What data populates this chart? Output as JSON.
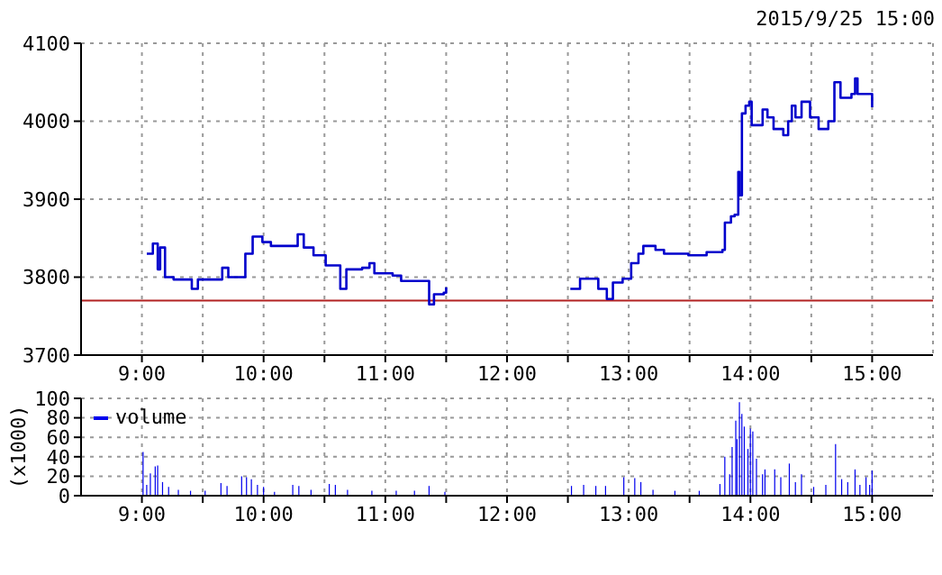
{
  "chart_data": [
    {
      "type": "step",
      "title": "2015/9/25 15:00",
      "xlim": [
        8.5,
        15.5
      ],
      "xticks": [
        {
          "value": 9,
          "label": "9:00"
        },
        {
          "value": 9.5,
          "label": null
        },
        {
          "value": 10,
          "label": "10:00"
        },
        {
          "value": 10.5,
          "label": null
        },
        {
          "value": 11,
          "label": "11:00"
        },
        {
          "value": 11.5,
          "label": null
        },
        {
          "value": 12,
          "label": "12:00"
        },
        {
          "value": 12.5,
          "label": null
        },
        {
          "value": 13,
          "label": "13:00"
        },
        {
          "value": 13.5,
          "label": null
        },
        {
          "value": 14,
          "label": "14:00"
        },
        {
          "value": 14.5,
          "label": null
        },
        {
          "value": 15,
          "label": "15:00"
        }
      ],
      "ylim": [
        3700,
        4100
      ],
      "yticks": [
        3700,
        3800,
        3900,
        4000,
        4100
      ],
      "grid": true,
      "marker": "none",
      "ref_lines": [
        {
          "axis": "y",
          "value": 3770,
          "label": null,
          "color": "#b22222"
        }
      ],
      "series": [
        {
          "color": "#0000cc",
          "x": [
            9.04,
            9.09,
            9.13,
            9.15,
            9.19,
            9.26,
            9.41,
            9.46,
            9.66,
            9.71,
            9.81,
            9.85,
            9.91,
            9.99,
            10.06,
            10.21,
            10.28,
            10.33,
            10.41,
            10.51,
            10.63,
            10.68,
            10.81,
            10.87,
            10.91,
            11.06,
            11.13,
            11.3,
            11.36,
            11.4,
            11.48,
            11.5,
            12.0,
            12.52,
            12.6,
            12.72,
            12.75,
            12.82,
            12.87,
            12.95,
            13.02,
            13.08,
            13.12,
            13.22,
            13.29,
            13.49,
            13.64,
            13.77,
            13.79,
            13.84,
            13.87,
            13.9,
            13.91,
            13.93,
            13.96,
            13.99,
            14.01,
            14.06,
            14.1,
            14.14,
            14.19,
            14.27,
            14.31,
            14.34,
            14.37,
            14.42,
            14.49,
            14.56,
            14.64,
            14.69,
            14.74,
            14.83,
            14.86,
            14.88,
            14.96,
            15.0
          ],
          "values": [
            3830,
            3843,
            3810,
            3838,
            3800,
            3797,
            3785,
            3797,
            3812,
            3800,
            3800,
            3830,
            3852,
            3845,
            3840,
            3840,
            3855,
            3838,
            3828,
            3815,
            3785,
            3810,
            3812,
            3818,
            3805,
            3802,
            3795,
            3795,
            3765,
            3778,
            3780,
            3787,
            null,
            3785,
            3798,
            3798,
            3785,
            3772,
            3793,
            3798,
            3818,
            3830,
            3840,
            3835,
            3830,
            3828,
            3832,
            3835,
            3870,
            3878,
            3880,
            3935,
            3905,
            4010,
            4020,
            4025,
            3995,
            3995,
            4015,
            4005,
            3990,
            3982,
            4000,
            4020,
            4005,
            4025,
            4005,
            3990,
            4000,
            4050,
            4030,
            4035,
            4055,
            4035,
            4035,
            4018
          ]
        }
      ]
    },
    {
      "type": "bar",
      "ylabel": "(x1000)",
      "xlim": [
        8.5,
        15.5
      ],
      "xticks": [
        {
          "value": 9,
          "label": "9:00"
        },
        {
          "value": 9.5,
          "label": null
        },
        {
          "value": 10,
          "label": "10:00"
        },
        {
          "value": 10.5,
          "label": null
        },
        {
          "value": 11,
          "label": "11:00"
        },
        {
          "value": 11.5,
          "label": null
        },
        {
          "value": 12,
          "label": "12:00"
        },
        {
          "value": 12.5,
          "label": null
        },
        {
          "value": 13,
          "label": "13:00"
        },
        {
          "value": 13.5,
          "label": null
        },
        {
          "value": 14,
          "label": "14:00"
        },
        {
          "value": 14.5,
          "label": null
        },
        {
          "value": 15,
          "label": "15:00"
        }
      ],
      "ylim": [
        0,
        100
      ],
      "yticks": [
        0,
        20,
        40,
        60,
        80,
        100
      ],
      "grid": true,
      "legend": "top left",
      "series": [
        {
          "name": "volume",
          "color": "#0000ee",
          "x": [
            9.01,
            9.04,
            9.07,
            9.11,
            9.13,
            9.17,
            9.22,
            9.3,
            9.4,
            9.52,
            9.65,
            9.7,
            9.82,
            9.86,
            9.9,
            9.95,
            10.0,
            10.09,
            10.24,
            10.29,
            10.39,
            10.54,
            10.59,
            10.69,
            10.89,
            11.09,
            11.24,
            11.36,
            11.49,
            12.53,
            12.63,
            12.73,
            12.81,
            12.96,
            13.05,
            13.1,
            13.2,
            13.38,
            13.58,
            13.75,
            13.79,
            13.83,
            13.85,
            13.88,
            13.89,
            13.91,
            13.93,
            13.95,
            13.98,
            14.0,
            14.02,
            14.05,
            14.1,
            14.12,
            14.2,
            14.25,
            14.32,
            14.37,
            14.42,
            14.52,
            14.62,
            14.7,
            14.75,
            14.8,
            14.86,
            14.9,
            14.95,
            14.98,
            15.0
          ],
          "values": [
            45,
            11,
            23,
            30,
            31,
            14,
            9,
            6,
            5,
            5,
            13,
            10,
            20,
            19,
            17,
            11,
            9,
            4,
            11,
            10,
            6,
            12,
            11,
            6,
            5,
            5,
            5,
            10,
            4,
            10,
            11,
            10,
            10,
            19,
            18,
            14,
            6,
            5,
            5,
            12,
            40,
            22,
            50,
            77,
            58,
            96,
            84,
            71,
            48,
            69,
            66,
            38,
            22,
            27,
            27,
            19,
            33,
            14,
            22,
            9,
            11,
            53,
            17,
            14,
            27,
            11,
            19,
            11,
            26
          ]
        }
      ]
    }
  ]
}
